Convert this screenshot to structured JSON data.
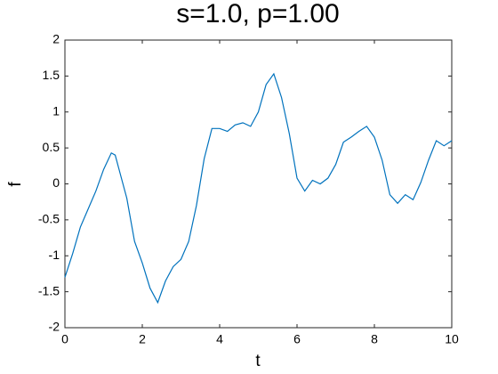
{
  "chart_data": {
    "type": "line",
    "title": "s=1.0, p=1.00",
    "xlabel": "t",
    "ylabel": "f",
    "x": [
      0,
      0.2,
      0.4,
      0.6,
      0.8,
      1.0,
      1.2,
      1.3,
      1.4,
      1.6,
      1.8,
      2.0,
      2.2,
      2.4,
      2.6,
      2.8,
      3.0,
      3.2,
      3.4,
      3.6,
      3.8,
      4.0,
      4.2,
      4.4,
      4.6,
      4.8,
      5.0,
      5.2,
      5.4,
      5.6,
      5.8,
      6.0,
      6.2,
      6.4,
      6.6,
      6.8,
      7.0,
      7.2,
      7.4,
      7.6,
      7.8,
      8.0,
      8.2,
      8.4,
      8.6,
      8.8,
      9.0,
      9.2,
      9.4,
      9.6,
      9.8,
      10
    ],
    "series": [
      {
        "color": "#0072bd",
        "values": [
          -1.3,
          -0.97,
          -0.6,
          -0.35,
          -0.1,
          0.2,
          0.43,
          0.4,
          0.2,
          -0.2,
          -0.8,
          -1.1,
          -1.45,
          -1.65,
          -1.35,
          -1.15,
          -1.05,
          -0.8,
          -0.3,
          0.35,
          0.77,
          0.77,
          0.73,
          0.82,
          0.85,
          0.8,
          1.0,
          1.38,
          1.53,
          1.2,
          0.7,
          0.08,
          -0.1,
          0.05,
          0.0,
          0.08,
          0.27,
          0.58,
          0.65,
          0.73,
          0.8,
          0.65,
          0.33,
          -0.15,
          -0.27,
          -0.15,
          -0.22,
          0.02,
          0.33,
          0.6,
          0.53,
          0.6
        ]
      }
    ],
    "xlim": [
      0,
      10
    ],
    "xticks": [
      0,
      2,
      4,
      6,
      8,
      10
    ],
    "ylim": [
      -2,
      2
    ],
    "yticks": [
      -2,
      -1.5,
      -1,
      -0.5,
      0,
      0.5,
      1,
      1.5,
      2
    ]
  }
}
